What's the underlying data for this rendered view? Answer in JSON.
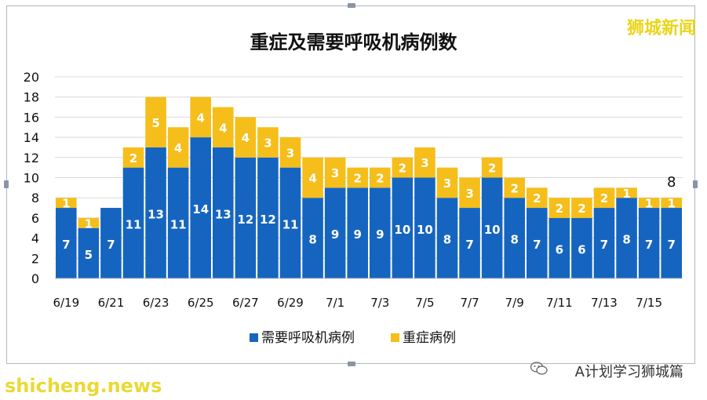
{
  "brand_watermark": "狮城新闻",
  "footer": {
    "credit": "A计划学习狮城篇",
    "site": "shicheng.news"
  },
  "colors": {
    "ventilator": "#1565c0",
    "severe": "#f5be1a",
    "text": "#111111"
  },
  "chart_data": {
    "type": "bar",
    "stacked": true,
    "title": "重症及需要呼吸机病例数",
    "categories": [
      "6/19",
      "6/20",
      "6/21",
      "6/22",
      "6/23",
      "6/24",
      "6/25",
      "6/26",
      "6/27",
      "6/28",
      "6/29",
      "6/30",
      "7/1",
      "7/2",
      "7/3",
      "7/4",
      "7/5",
      "7/6",
      "7/7",
      "7/8",
      "7/9",
      "7/10",
      "7/11",
      "7/12",
      "7/13",
      "7/14",
      "7/15",
      "7/16"
    ],
    "tick_labels": [
      "6/19",
      "",
      "6/21",
      "",
      "6/23",
      "",
      "6/25",
      "",
      "6/27",
      "",
      "6/29",
      "",
      "7/1",
      "",
      "7/3",
      "",
      "7/5",
      "",
      "7/7",
      "",
      "7/9",
      "",
      "7/11",
      "",
      "7/13",
      "",
      "7/15",
      ""
    ],
    "series": [
      {
        "name": "需要呼吸机病例",
        "color": "#1565c0",
        "values": [
          7,
          5,
          7,
          11,
          13,
          11,
          14,
          13,
          12,
          12,
          11,
          8,
          9,
          9,
          9,
          10,
          10,
          8,
          7,
          10,
          8,
          7,
          6,
          6,
          7,
          8,
          7,
          7
        ],
        "labels": [
          "7",
          "5",
          "7",
          "11",
          "13",
          "11",
          "14",
          "13",
          "12",
          "12",
          "11",
          "8",
          "9",
          "9",
          "9",
          "10",
          "10",
          "8",
          "7",
          "10",
          "8",
          "7",
          "6",
          "6",
          "7",
          "8",
          "7",
          "7"
        ]
      },
      {
        "name": "重症病例",
        "color": "#f5be1a",
        "values": [
          1,
          1,
          0,
          2,
          5,
          4,
          4,
          4,
          4,
          3,
          3,
          4,
          3,
          2,
          2,
          2,
          3,
          3,
          3,
          2,
          2,
          2,
          2,
          2,
          2,
          1,
          1,
          1
        ],
        "labels": [
          "1",
          "1",
          "",
          "2",
          "5",
          "4",
          "4",
          "4",
          "4",
          "3",
          "3",
          "4",
          "3",
          "2",
          "2",
          "2",
          "3",
          "3",
          "3",
          "2",
          "2",
          "2",
          "2",
          "2",
          "2",
          "1",
          "1",
          "1"
        ]
      }
    ],
    "ylim": [
      0,
      20
    ],
    "yticks": [
      "0",
      "2",
      "4",
      "6",
      "8",
      "10",
      "12",
      "14",
      "16",
      "18",
      "20"
    ],
    "annotation": "8",
    "grid": true,
    "legend": "bottom-center"
  }
}
